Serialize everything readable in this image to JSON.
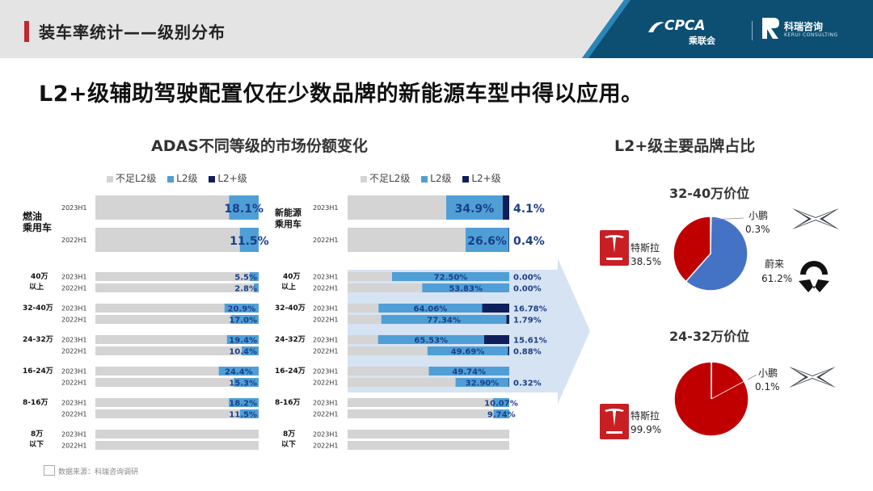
{
  "header": {
    "title": "装车率统计——级别分布",
    "logo_cpca": "CPCA",
    "logo_cpca_sub": "乘联会",
    "logo_kerui": "科瑞咨询",
    "logo_kerui_en": "KERUI CONSULTING"
  },
  "headline": "L2+级辅助驾驶配置仅在少数品牌的新能源车型中得以应用。",
  "left_title": "ADAS不同等级的市场份额变化",
  "right_title": "L2+级主要品牌占比",
  "legend": [
    "不足L2级",
    "L2级",
    "L2+级"
  ],
  "colors": {
    "below_l2": "#d4d4d4",
    "l2": "#4f9fd6",
    "l2plus": "#0f1f5c",
    "tesla": "#c00000",
    "nio": "#4472c4",
    "xpeng": "#2f6fb3",
    "arrow": "#c8d9ef",
    "header_band": "#0d4f73"
  },
  "source": "数据来源：科瑞咨询调研",
  "chart_data": [
    {
      "type": "bar",
      "title": "燃油乘用车",
      "series": [
        {
          "name": "L2级"
        }
      ],
      "groups": [
        {
          "label": "燃油乘用车",
          "rows": [
            {
              "year": "2023H1",
              "l2": 18.1,
              "label": "18.1%"
            },
            {
              "year": "2022H1",
              "l2": 11.5,
              "label": "11.5%"
            }
          ]
        },
        {
          "label": "40万以上",
          "rows": [
            {
              "year": "2023H1",
              "l2": 5.5,
              "label": "5.5%"
            },
            {
              "year": "2022H1",
              "l2": 2.8,
              "label": "2.8%"
            }
          ]
        },
        {
          "label": "32-40万",
          "rows": [
            {
              "year": "2023H1",
              "l2": 20.9,
              "label": "20.9%"
            },
            {
              "year": "2022H1",
              "l2": 17.0,
              "label": "17.0%"
            }
          ]
        },
        {
          "label": "24-32万",
          "rows": [
            {
              "year": "2023H1",
              "l2": 19.4,
              "label": "19.4%"
            },
            {
              "year": "2022H1",
              "l2": 10.4,
              "label": "10.4%"
            }
          ]
        },
        {
          "label": "16-24万",
          "rows": [
            {
              "year": "2023H1",
              "l2": 24.4,
              "label": "24.4%"
            },
            {
              "year": "2022H1",
              "l2": 15.3,
              "label": "15.3%"
            }
          ]
        },
        {
          "label": "8-16万",
          "rows": [
            {
              "year": "2023H1",
              "l2": 18.2,
              "label": "18.2%"
            },
            {
              "year": "2022H1",
              "l2": 11.5,
              "label": "11.5%"
            }
          ]
        },
        {
          "label": "8万以下",
          "rows": [
            {
              "year": "2023H1",
              "l2": 0
            },
            {
              "year": "2022H1",
              "l2": 0
            }
          ]
        }
      ]
    },
    {
      "type": "bar",
      "title": "新能源乘用车",
      "series": [
        {
          "name": "L2级"
        },
        {
          "name": "L2+级"
        }
      ],
      "groups": [
        {
          "label": "新能源乘用车",
          "rows": [
            {
              "year": "2023H1",
              "l2": 34.9,
              "l2p": 4.1,
              "label": "34.9%",
              "plabel": "4.1%"
            },
            {
              "year": "2022H1",
              "l2": 26.6,
              "l2p": 0.4,
              "label": "26.6%",
              "plabel": "0.4%"
            }
          ]
        },
        {
          "label": "40万以上",
          "rows": [
            {
              "year": "2023H1",
              "l2": 72.5,
              "l2p": 0,
              "label": "72.50%",
              "plabel": "0.00%"
            },
            {
              "year": "2022H1",
              "l2": 53.83,
              "l2p": 0,
              "label": "53.83%",
              "plabel": "0.00%"
            }
          ]
        },
        {
          "label": "32-40万",
          "rows": [
            {
              "year": "2023H1",
              "l2": 64.06,
              "l2p": 16.78,
              "label": "64.06%",
              "plabel": "16.78%"
            },
            {
              "year": "2022H1",
              "l2": 77.34,
              "l2p": 1.79,
              "label": "77.34%",
              "plabel": "1.79%"
            }
          ]
        },
        {
          "label": "24-32万",
          "rows": [
            {
              "year": "2023H1",
              "l2": 65.53,
              "l2p": 15.61,
              "label": "65.53%",
              "plabel": "15.61%"
            },
            {
              "year": "2022H1",
              "l2": 49.69,
              "l2p": 0.88,
              "label": "49.69%",
              "plabel": "0.88%"
            }
          ]
        },
        {
          "label": "16-24万",
          "rows": [
            {
              "year": "2023H1",
              "l2": 49.74,
              "l2p": 0,
              "label": "49.74%"
            },
            {
              "year": "2022H1",
              "l2": 32.9,
              "l2p": 0.32,
              "label": "32.90%",
              "plabel": "0.32%"
            }
          ]
        },
        {
          "label": "8-16万",
          "rows": [
            {
              "year": "2023H1",
              "l2": 10.07,
              "l2p": 0,
              "label": "10.07%"
            },
            {
              "year": "2022H1",
              "l2": 9.74,
              "l2p": 0,
              "label": "9.74%"
            }
          ]
        },
        {
          "label": "8万以下",
          "rows": [
            {
              "year": "2023H1",
              "l2": 0,
              "l2p": 0
            },
            {
              "year": "2022H1",
              "l2": 0,
              "l2p": 0
            }
          ]
        }
      ]
    },
    {
      "type": "pie",
      "title": "32-40万价位",
      "slices": [
        {
          "name": "特斯拉",
          "value": 38.5,
          "label": "38.5%"
        },
        {
          "name": "蔚来",
          "value": 61.2,
          "label": "61.2%"
        },
        {
          "name": "小鹏",
          "value": 0.3,
          "label": "0.3%"
        }
      ]
    },
    {
      "type": "pie",
      "title": "24-32万价位",
      "slices": [
        {
          "name": "特斯拉",
          "value": 99.9,
          "label": "99.9%"
        },
        {
          "name": "小鹏",
          "value": 0.1,
          "label": "0.1%"
        }
      ]
    }
  ]
}
